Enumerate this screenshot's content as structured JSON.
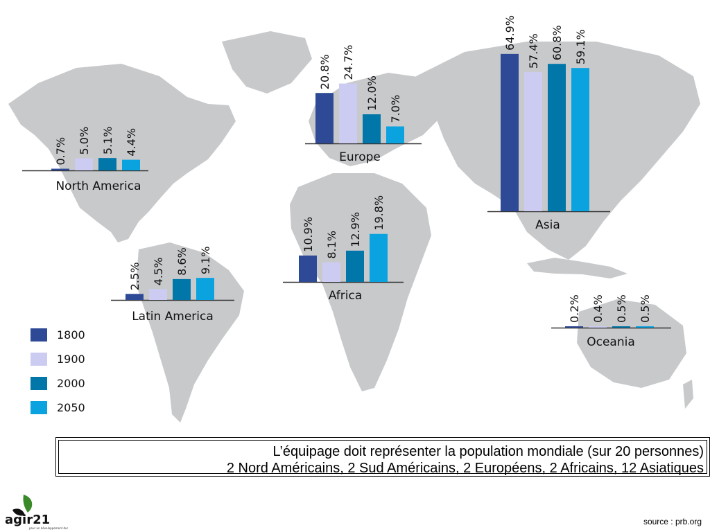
{
  "chart_data": {
    "type": "bar",
    "series": [
      {
        "name": "1800",
        "color": "#2e4a96"
      },
      {
        "name": "1900",
        "color": "#ccccf2"
      },
      {
        "name": "2000",
        "color": "#0077a8"
      },
      {
        "name": "2050",
        "color": "#0aa3e0"
      }
    ],
    "groups": [
      {
        "region": "North America",
        "values": [
          0.7,
          5.0,
          5.1,
          4.4
        ],
        "labels": [
          "0.7%",
          "5.0%",
          "5.1%",
          "4.4%"
        ]
      },
      {
        "region": "Latin America",
        "values": [
          2.5,
          4.5,
          8.6,
          9.1
        ],
        "labels": [
          "2.5%",
          "4.5%",
          "8.6%",
          "9.1%"
        ]
      },
      {
        "region": "Europe",
        "values": [
          20.8,
          24.7,
          12.0,
          7.0
        ],
        "labels": [
          "20.8%",
          "24.7%",
          "12.0%",
          "7.0%"
        ]
      },
      {
        "region": "Africa",
        "values": [
          10.9,
          8.1,
          12.9,
          19.8
        ],
        "labels": [
          "10.9%",
          "8.1%",
          "12.9%",
          "19.8%"
        ]
      },
      {
        "region": "Asia",
        "values": [
          64.9,
          57.4,
          60.8,
          59.1
        ],
        "labels": [
          "64.9%",
          "57.4%",
          "60.8%",
          "59.1%"
        ]
      },
      {
        "region": "Oceania",
        "values": [
          0.2,
          0.4,
          0.5,
          0.5
        ],
        "labels": [
          "0.2%",
          "0.4%",
          "0.5%",
          "0.5%"
        ]
      }
    ],
    "legend": {
      "placement": "bottom-left"
    }
  },
  "caption": {
    "line1": "L’équipage doit représenter la population mondiale (sur 20 personnes)",
    "line2": "2 Nord Américains, 2 Sud Américains, 2 Européens, 2 Africains, 12 Asiatiques"
  },
  "source": "source : prb.org",
  "logo": {
    "text": "agir21",
    "subtext": "pour un développement durable",
    "color": "#3a8a2a"
  }
}
